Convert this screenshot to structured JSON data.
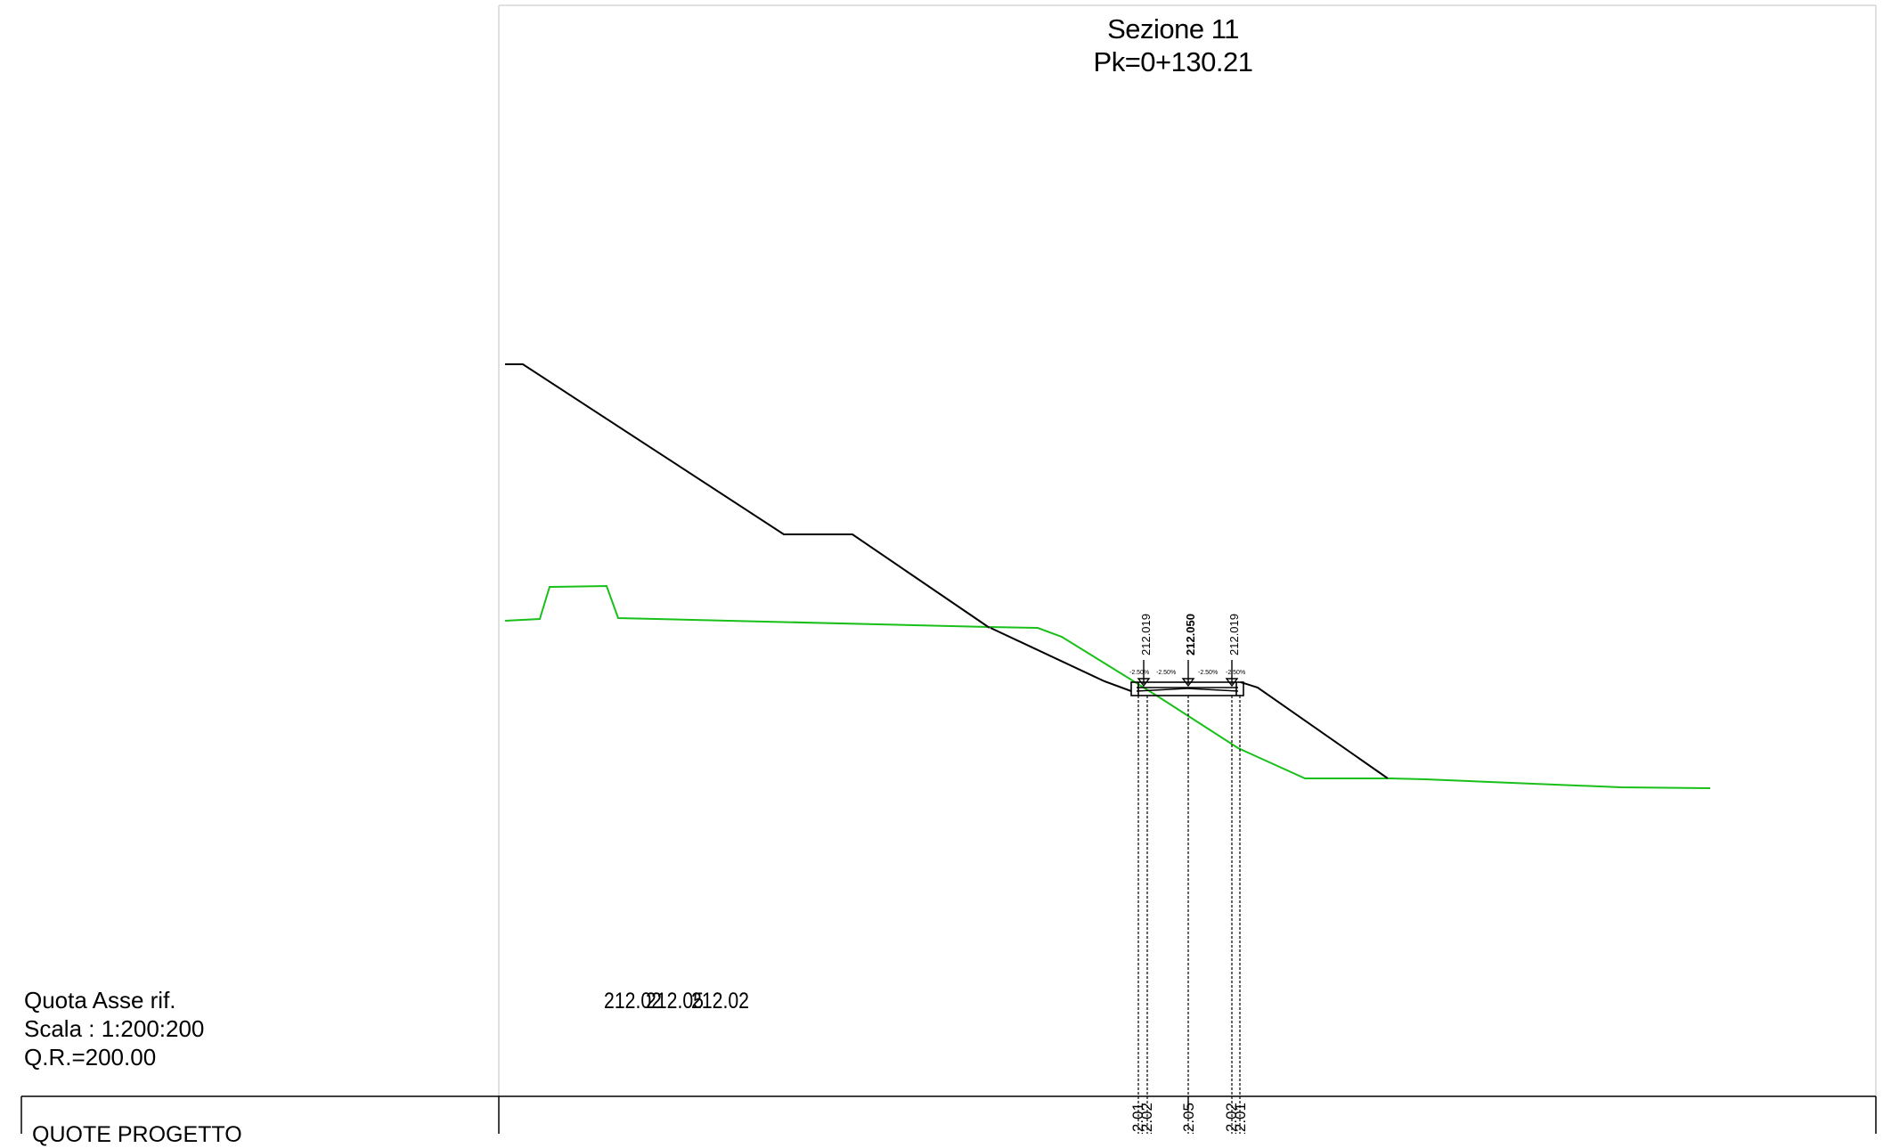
{
  "header": {
    "section_name": "Sezione 11",
    "chainage": "Pk=0+130.21"
  },
  "legend": {
    "axis_elevation_label": "Quota Asse rif.",
    "scale": "Scala : 1:200:200",
    "reference_elevation": "Q.R.=200.00",
    "axis_elevations_overlap": [
      "212.02",
      "212.05",
      "212.02"
    ]
  },
  "table": {
    "row_label": "QUOTE PROGETTO",
    "cells": [
      "212.01",
      "212.02",
      "212.05",
      "212.02",
      "212.01"
    ]
  },
  "markers": {
    "elevations": [
      "212.019",
      "212.050",
      "212.019"
    ],
    "slopes": [
      "-2.50%",
      "-2.50%",
      "-2.50%",
      "-2.50%"
    ]
  },
  "colors": {
    "ground_line": "#19c019",
    "design_line": "#000000",
    "frame": "#d0d0d0"
  }
}
